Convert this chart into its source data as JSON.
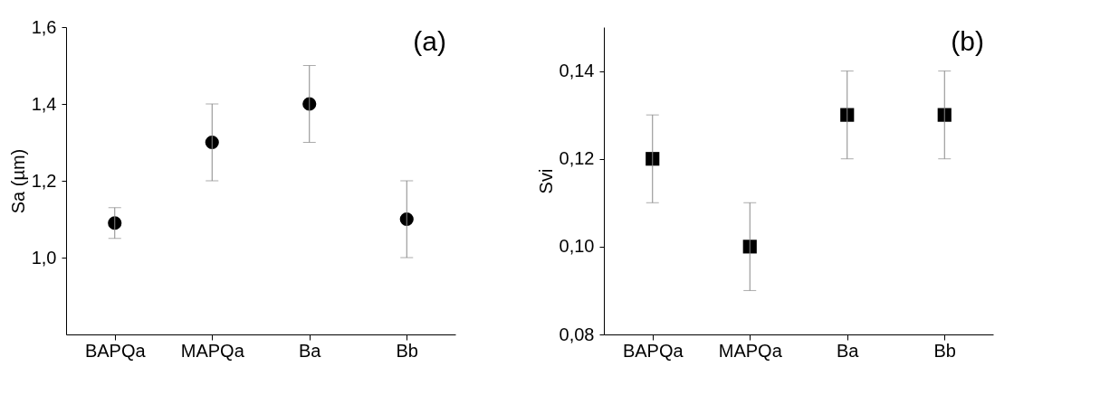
{
  "chart_data": [
    {
      "type": "scatter",
      "categories": [
        "BAPQa",
        "MAPQa",
        "Ba",
        "Bb"
      ],
      "ylabel": "Sa (µm)",
      "annotations": [
        "(a)"
      ],
      "marker": "circle",
      "series": [
        {
          "color": "#000000",
          "values": [
            1.09,
            1.3,
            1.4,
            1.1
          ],
          "errors": [
            [
              1.05,
              1.13
            ],
            0.1,
            0.1,
            0.1
          ]
        }
      ],
      "ylim": [
        0.8,
        1.6
      ],
      "yticks": [
        {
          "value": 1.0,
          "label": "1,0"
        },
        {
          "value": 1.2,
          "label": "1,2"
        },
        {
          "value": 1.4,
          "label": "1,4"
        },
        {
          "value": 1.6,
          "label": "1,6"
        }
      ],
      "grid": false
    },
    {
      "type": "scatter",
      "categories": [
        "BAPQa",
        "MAPQa",
        "Ba",
        "Bb"
      ],
      "ylabel": "Svi",
      "annotations": [
        "(b)"
      ],
      "marker": "square",
      "series": [
        {
          "color": "#000000",
          "values": [
            0.12,
            0.1,
            0.13,
            0.13
          ],
          "errors": [
            0.01,
            0.01,
            0.01,
            0.01
          ]
        }
      ],
      "ylim": [
        0.08,
        0.15
      ],
      "yticks": [
        {
          "value": 0.08,
          "label": "0,08"
        },
        {
          "value": 0.1,
          "label": "0,10"
        },
        {
          "value": 0.12,
          "label": "0,12"
        },
        {
          "value": 0.14,
          "label": "0,14"
        }
      ],
      "grid": false
    }
  ]
}
